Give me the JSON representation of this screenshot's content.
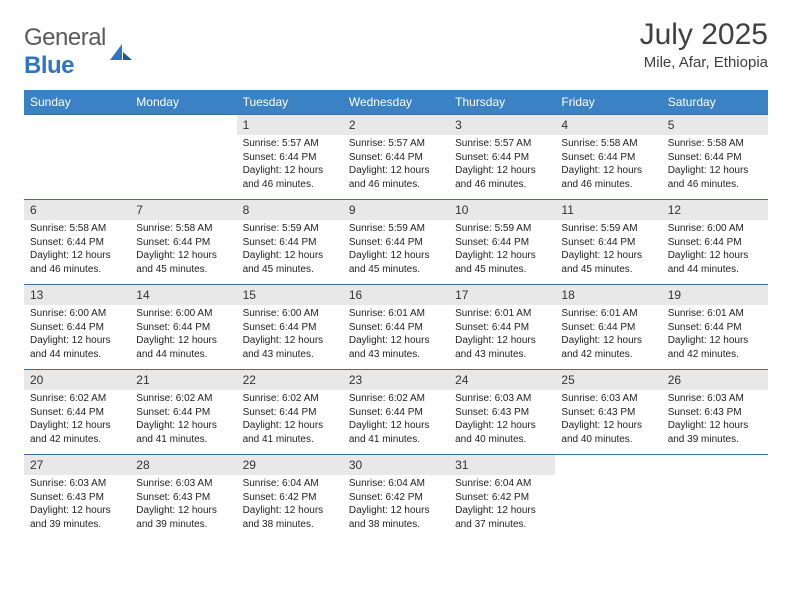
{
  "logo": {
    "word1": "General",
    "word2": "Blue"
  },
  "title": "July 2025",
  "location": "Mile, Afar, Ethiopia",
  "colors": {
    "header_bg": "#3b82c4",
    "header_text": "#ffffff",
    "daynum_bg": "#e8e8e8",
    "row_border": "#3b6fa0",
    "page_bg": "#ffffff",
    "title_color": "#404040",
    "logo_gray": "#5a5a5a",
    "logo_blue": "#2f75c1",
    "body_text": "#222222"
  },
  "fonts": {
    "title_pt": 30,
    "location_pt": 15,
    "th_pt": 12,
    "daynum_pt": 12,
    "body_pt": 10
  },
  "day_labels": [
    "Sunday",
    "Monday",
    "Tuesday",
    "Wednesday",
    "Thursday",
    "Friday",
    "Saturday"
  ],
  "grid": {
    "rows": 5,
    "cols": 7,
    "first_weekday_index": 2,
    "days_in_month": 31
  },
  "days": {
    "1": {
      "sunrise": "5:57 AM",
      "sunset": "6:44 PM",
      "daylight": "12 hours and 46 minutes."
    },
    "2": {
      "sunrise": "5:57 AM",
      "sunset": "6:44 PM",
      "daylight": "12 hours and 46 minutes."
    },
    "3": {
      "sunrise": "5:57 AM",
      "sunset": "6:44 PM",
      "daylight": "12 hours and 46 minutes."
    },
    "4": {
      "sunrise": "5:58 AM",
      "sunset": "6:44 PM",
      "daylight": "12 hours and 46 minutes."
    },
    "5": {
      "sunrise": "5:58 AM",
      "sunset": "6:44 PM",
      "daylight": "12 hours and 46 minutes."
    },
    "6": {
      "sunrise": "5:58 AM",
      "sunset": "6:44 PM",
      "daylight": "12 hours and 46 minutes."
    },
    "7": {
      "sunrise": "5:58 AM",
      "sunset": "6:44 PM",
      "daylight": "12 hours and 45 minutes."
    },
    "8": {
      "sunrise": "5:59 AM",
      "sunset": "6:44 PM",
      "daylight": "12 hours and 45 minutes."
    },
    "9": {
      "sunrise": "5:59 AM",
      "sunset": "6:44 PM",
      "daylight": "12 hours and 45 minutes."
    },
    "10": {
      "sunrise": "5:59 AM",
      "sunset": "6:44 PM",
      "daylight": "12 hours and 45 minutes."
    },
    "11": {
      "sunrise": "5:59 AM",
      "sunset": "6:44 PM",
      "daylight": "12 hours and 45 minutes."
    },
    "12": {
      "sunrise": "6:00 AM",
      "sunset": "6:44 PM",
      "daylight": "12 hours and 44 minutes."
    },
    "13": {
      "sunrise": "6:00 AM",
      "sunset": "6:44 PM",
      "daylight": "12 hours and 44 minutes."
    },
    "14": {
      "sunrise": "6:00 AM",
      "sunset": "6:44 PM",
      "daylight": "12 hours and 44 minutes."
    },
    "15": {
      "sunrise": "6:00 AM",
      "sunset": "6:44 PM",
      "daylight": "12 hours and 43 minutes."
    },
    "16": {
      "sunrise": "6:01 AM",
      "sunset": "6:44 PM",
      "daylight": "12 hours and 43 minutes."
    },
    "17": {
      "sunrise": "6:01 AM",
      "sunset": "6:44 PM",
      "daylight": "12 hours and 43 minutes."
    },
    "18": {
      "sunrise": "6:01 AM",
      "sunset": "6:44 PM",
      "daylight": "12 hours and 42 minutes."
    },
    "19": {
      "sunrise": "6:01 AM",
      "sunset": "6:44 PM",
      "daylight": "12 hours and 42 minutes."
    },
    "20": {
      "sunrise": "6:02 AM",
      "sunset": "6:44 PM",
      "daylight": "12 hours and 42 minutes."
    },
    "21": {
      "sunrise": "6:02 AM",
      "sunset": "6:44 PM",
      "daylight": "12 hours and 41 minutes."
    },
    "22": {
      "sunrise": "6:02 AM",
      "sunset": "6:44 PM",
      "daylight": "12 hours and 41 minutes."
    },
    "23": {
      "sunrise": "6:02 AM",
      "sunset": "6:44 PM",
      "daylight": "12 hours and 41 minutes."
    },
    "24": {
      "sunrise": "6:03 AM",
      "sunset": "6:43 PM",
      "daylight": "12 hours and 40 minutes."
    },
    "25": {
      "sunrise": "6:03 AM",
      "sunset": "6:43 PM",
      "daylight": "12 hours and 40 minutes."
    },
    "26": {
      "sunrise": "6:03 AM",
      "sunset": "6:43 PM",
      "daylight": "12 hours and 39 minutes."
    },
    "27": {
      "sunrise": "6:03 AM",
      "sunset": "6:43 PM",
      "daylight": "12 hours and 39 minutes."
    },
    "28": {
      "sunrise": "6:03 AM",
      "sunset": "6:43 PM",
      "daylight": "12 hours and 39 minutes."
    },
    "29": {
      "sunrise": "6:04 AM",
      "sunset": "6:42 PM",
      "daylight": "12 hours and 38 minutes."
    },
    "30": {
      "sunrise": "6:04 AM",
      "sunset": "6:42 PM",
      "daylight": "12 hours and 38 minutes."
    },
    "31": {
      "sunrise": "6:04 AM",
      "sunset": "6:42 PM",
      "daylight": "12 hours and 37 minutes."
    }
  },
  "labels": {
    "sunrise": "Sunrise:",
    "sunset": "Sunset:",
    "daylight": "Daylight:"
  }
}
